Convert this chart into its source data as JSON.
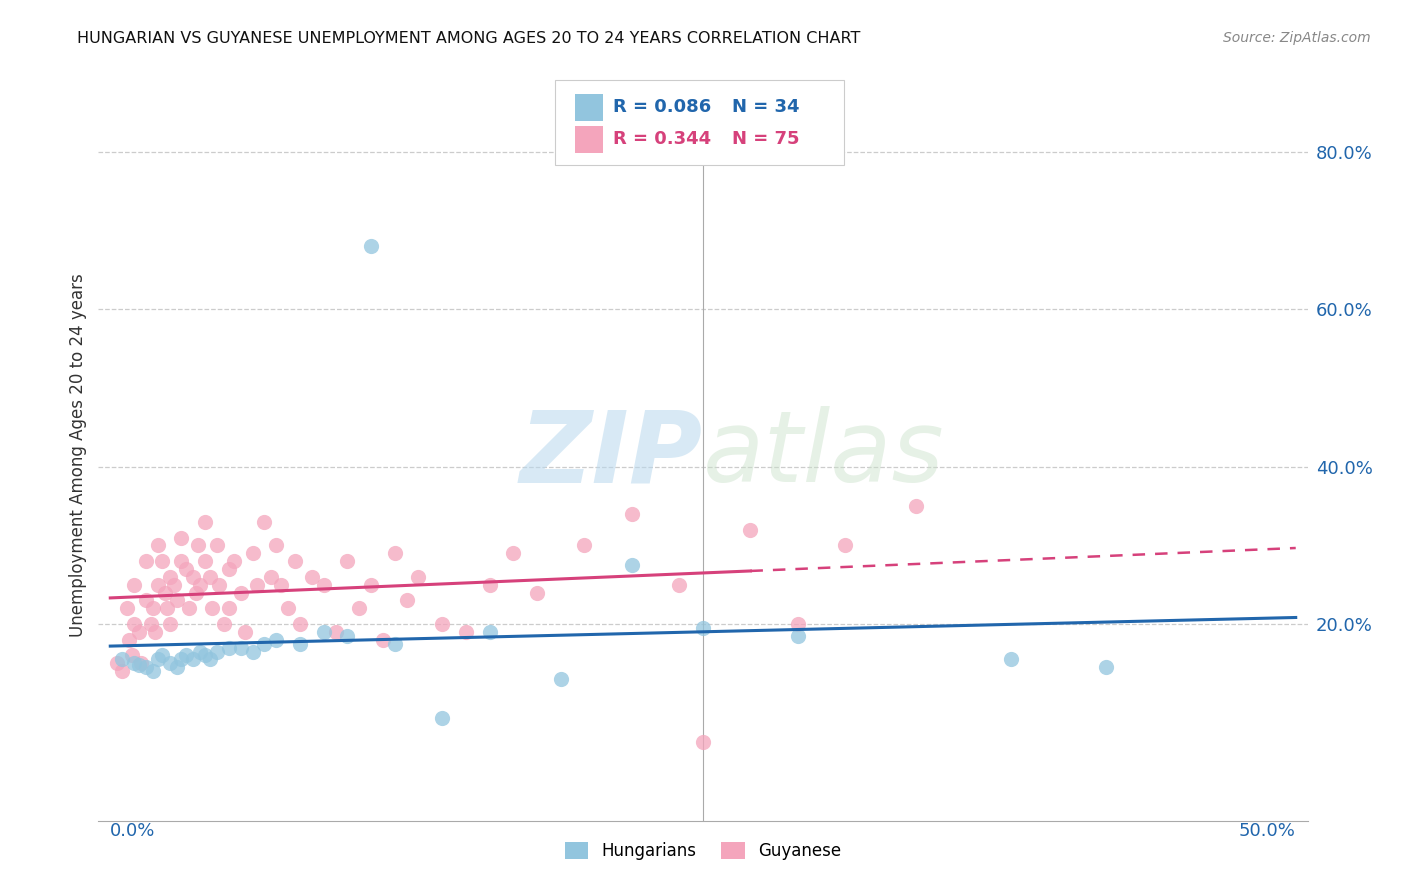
{
  "title": "HUNGARIAN VS GUYANESE UNEMPLOYMENT AMONG AGES 20 TO 24 YEARS CORRELATION CHART",
  "source": "Source: ZipAtlas.com",
  "ylabel": "Unemployment Among Ages 20 to 24 years",
  "y_tick_labels": [
    "20.0%",
    "40.0%",
    "60.0%",
    "80.0%"
  ],
  "y_tick_values": [
    0.2,
    0.4,
    0.6,
    0.8
  ],
  "xlim": [
    -0.005,
    0.505
  ],
  "ylim": [
    -0.05,
    0.88
  ],
  "hungarian_R": "R = 0.086",
  "hungarian_N": "N = 34",
  "guyanese_R": "R = 0.344",
  "guyanese_N": "N = 75",
  "hungarian_color": "#92c5de",
  "guyanese_color": "#f4a5bc",
  "hungarian_line_color": "#2166ac",
  "guyanese_line_color": "#d6417b",
  "legend_labels": [
    "Hungarians",
    "Guyanese"
  ],
  "hungarian_x": [
    0.005,
    0.01,
    0.012,
    0.015,
    0.018,
    0.02,
    0.022,
    0.025,
    0.028,
    0.03,
    0.032,
    0.035,
    0.038,
    0.04,
    0.042,
    0.045,
    0.05,
    0.055,
    0.06,
    0.065,
    0.07,
    0.08,
    0.09,
    0.1,
    0.11,
    0.12,
    0.14,
    0.16,
    0.19,
    0.22,
    0.25,
    0.29,
    0.38,
    0.42
  ],
  "hungarian_y": [
    0.155,
    0.15,
    0.148,
    0.145,
    0.14,
    0.155,
    0.16,
    0.15,
    0.145,
    0.155,
    0.16,
    0.155,
    0.165,
    0.16,
    0.155,
    0.165,
    0.17,
    0.17,
    0.165,
    0.175,
    0.18,
    0.175,
    0.19,
    0.185,
    0.68,
    0.175,
    0.08,
    0.19,
    0.13,
    0.275,
    0.195,
    0.185,
    0.155,
    0.145
  ],
  "guyanese_x": [
    0.003,
    0.005,
    0.007,
    0.008,
    0.009,
    0.01,
    0.01,
    0.012,
    0.013,
    0.015,
    0.015,
    0.017,
    0.018,
    0.019,
    0.02,
    0.02,
    0.022,
    0.023,
    0.024,
    0.025,
    0.025,
    0.027,
    0.028,
    0.03,
    0.03,
    0.032,
    0.033,
    0.035,
    0.036,
    0.037,
    0.038,
    0.04,
    0.04,
    0.042,
    0.043,
    0.045,
    0.046,
    0.048,
    0.05,
    0.05,
    0.052,
    0.055,
    0.057,
    0.06,
    0.062,
    0.065,
    0.068,
    0.07,
    0.072,
    0.075,
    0.078,
    0.08,
    0.085,
    0.09,
    0.095,
    0.1,
    0.105,
    0.11,
    0.115,
    0.12,
    0.125,
    0.13,
    0.14,
    0.15,
    0.16,
    0.17,
    0.18,
    0.2,
    0.22,
    0.24,
    0.25,
    0.27,
    0.29,
    0.31,
    0.34
  ],
  "guyanese_y": [
    0.15,
    0.14,
    0.22,
    0.18,
    0.16,
    0.25,
    0.2,
    0.19,
    0.15,
    0.28,
    0.23,
    0.2,
    0.22,
    0.19,
    0.3,
    0.25,
    0.28,
    0.24,
    0.22,
    0.26,
    0.2,
    0.25,
    0.23,
    0.31,
    0.28,
    0.27,
    0.22,
    0.26,
    0.24,
    0.3,
    0.25,
    0.33,
    0.28,
    0.26,
    0.22,
    0.3,
    0.25,
    0.2,
    0.27,
    0.22,
    0.28,
    0.24,
    0.19,
    0.29,
    0.25,
    0.33,
    0.26,
    0.3,
    0.25,
    0.22,
    0.28,
    0.2,
    0.26,
    0.25,
    0.19,
    0.28,
    0.22,
    0.25,
    0.18,
    0.29,
    0.23,
    0.26,
    0.2,
    0.19,
    0.25,
    0.29,
    0.24,
    0.3,
    0.34,
    0.25,
    0.05,
    0.32,
    0.2,
    0.3,
    0.35
  ],
  "watermark_zip": "ZIP",
  "watermark_atlas": "atlas"
}
